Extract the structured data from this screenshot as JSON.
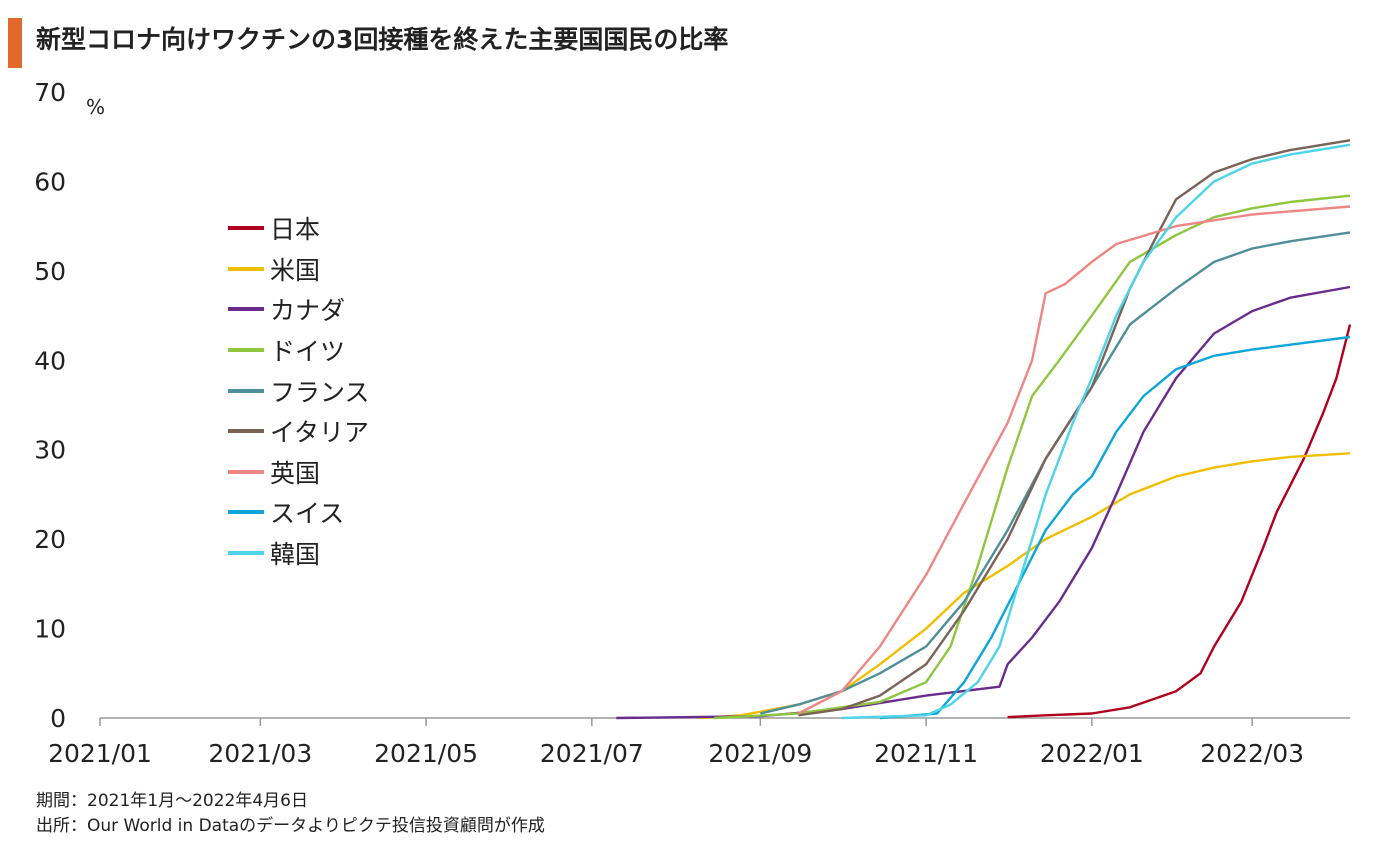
{
  "title": "新型コロナ向けワクチンの3回接種を終えた主要国国民の比率",
  "footnotes": {
    "period": "期間：2021年1月～2022年4月6日",
    "source": "出所：Our World in Dataのデータよりピクテ投信投資顧問が作成"
  },
  "chart_data": {
    "type": "line",
    "title": "新型コロナ向けワクチンの3回接種を終えた主要国国民の比率",
    "xlabel": "",
    "ylabel": "%",
    "unit_label": "%",
    "xlim": [
      "2021-01-01",
      "2022-04-06"
    ],
    "ylim": [
      0,
      70
    ],
    "yticks": [
      0,
      10,
      20,
      30,
      40,
      50,
      60,
      70
    ],
    "xticks": [
      {
        "date": "2021-01-01",
        "label": "2021/01"
      },
      {
        "date": "2021-03-01",
        "label": "2021/03"
      },
      {
        "date": "2021-05-01",
        "label": "2021/05"
      },
      {
        "date": "2021-07-01",
        "label": "2021/07"
      },
      {
        "date": "2021-09-01",
        "label": "2021/09"
      },
      {
        "date": "2021-11-01",
        "label": "2021/11"
      },
      {
        "date": "2022-01-01",
        "label": "2022/01"
      },
      {
        "date": "2022-03-01",
        "label": "2022/03"
      }
    ],
    "grid": false,
    "legend_position": "upper-left",
    "series": [
      {
        "name": "日本",
        "color": "#b0001e",
        "points": [
          [
            "2021-12-01",
            0.1
          ],
          [
            "2021-12-15",
            0.3
          ],
          [
            "2022-01-01",
            0.5
          ],
          [
            "2022-01-15",
            1.2
          ],
          [
            "2022-02-01",
            3
          ],
          [
            "2022-02-10",
            5
          ],
          [
            "2022-02-15",
            8
          ],
          [
            "2022-02-25",
            13
          ],
          [
            "2022-03-05",
            19
          ],
          [
            "2022-03-10",
            23
          ],
          [
            "2022-03-20",
            29
          ],
          [
            "2022-03-27",
            34
          ],
          [
            "2022-04-01",
            38
          ],
          [
            "2022-04-06",
            44
          ]
        ]
      },
      {
        "name": "米国",
        "color": "#f0be00",
        "points": [
          [
            "2021-08-10",
            0
          ],
          [
            "2021-08-25",
            0.3
          ],
          [
            "2021-09-15",
            1.5
          ],
          [
            "2021-10-01",
            3
          ],
          [
            "2021-10-15",
            6
          ],
          [
            "2021-11-01",
            10
          ],
          [
            "2021-11-15",
            14
          ],
          [
            "2021-12-01",
            17
          ],
          [
            "2021-12-15",
            20
          ],
          [
            "2022-01-01",
            22.5
          ],
          [
            "2022-01-15",
            25
          ],
          [
            "2022-02-01",
            27
          ],
          [
            "2022-02-15",
            28
          ],
          [
            "2022-03-01",
            28.7
          ],
          [
            "2022-03-15",
            29.2
          ],
          [
            "2022-04-06",
            29.6
          ]
        ]
      },
      {
        "name": "カナダ",
        "color": "#6a2c8c",
        "points": [
          [
            "2021-07-10",
            0
          ],
          [
            "2021-09-01",
            0.2
          ],
          [
            "2021-10-01",
            1
          ],
          [
            "2021-11-01",
            2.5
          ],
          [
            "2021-11-28",
            3.5
          ],
          [
            "2021-12-01",
            6
          ],
          [
            "2021-12-10",
            9
          ],
          [
            "2021-12-20",
            13
          ],
          [
            "2022-01-01",
            19
          ],
          [
            "2022-01-10",
            25
          ],
          [
            "2022-01-20",
            32
          ],
          [
            "2022-02-01",
            38
          ],
          [
            "2022-02-15",
            43
          ],
          [
            "2022-03-01",
            45.5
          ],
          [
            "2022-03-15",
            47
          ],
          [
            "2022-04-06",
            48.2
          ]
        ]
      },
      {
        "name": "ドイツ",
        "color": "#8ec63f",
        "points": [
          [
            "2021-08-15",
            0
          ],
          [
            "2021-09-15",
            0.5
          ],
          [
            "2021-10-15",
            1.8
          ],
          [
            "2021-11-01",
            4
          ],
          [
            "2021-11-10",
            8
          ],
          [
            "2021-11-20",
            17
          ],
          [
            "2021-12-01",
            28
          ],
          [
            "2021-12-10",
            36
          ],
          [
            "2021-12-20",
            40
          ],
          [
            "2022-01-01",
            45
          ],
          [
            "2022-01-15",
            51
          ],
          [
            "2022-02-01",
            54
          ],
          [
            "2022-02-15",
            56
          ],
          [
            "2022-03-01",
            57
          ],
          [
            "2022-03-15",
            57.7
          ],
          [
            "2022-04-06",
            58.4
          ]
        ]
      },
      {
        "name": "フランス",
        "color": "#4f8f9a",
        "points": [
          [
            "2021-09-01",
            0.5
          ],
          [
            "2021-09-15",
            1.5
          ],
          [
            "2021-10-01",
            3
          ],
          [
            "2021-10-15",
            5
          ],
          [
            "2021-11-01",
            8
          ],
          [
            "2021-11-15",
            13
          ],
          [
            "2021-12-01",
            21
          ],
          [
            "2021-12-15",
            29
          ],
          [
            "2022-01-01",
            37
          ],
          [
            "2022-01-15",
            44
          ],
          [
            "2022-02-01",
            48
          ],
          [
            "2022-02-15",
            51
          ],
          [
            "2022-03-01",
            52.5
          ],
          [
            "2022-03-15",
            53.3
          ],
          [
            "2022-04-06",
            54.3
          ]
        ]
      },
      {
        "name": "イタリア",
        "color": "#7a6257",
        "points": [
          [
            "2021-09-15",
            0.3
          ],
          [
            "2021-10-01",
            1
          ],
          [
            "2021-10-15",
            2.5
          ],
          [
            "2021-11-01",
            6
          ],
          [
            "2021-11-15",
            12
          ],
          [
            "2021-12-01",
            20
          ],
          [
            "2021-12-15",
            29
          ],
          [
            "2022-01-01",
            37
          ],
          [
            "2022-01-15",
            48
          ],
          [
            "2022-01-25",
            54
          ],
          [
            "2022-02-01",
            58
          ],
          [
            "2022-02-15",
            61
          ],
          [
            "2022-03-01",
            62.5
          ],
          [
            "2022-03-15",
            63.5
          ],
          [
            "2022-04-06",
            64.6
          ]
        ]
      },
      {
        "name": "英国",
        "color": "#ee8683",
        "points": [
          [
            "2021-09-15",
            0.5
          ],
          [
            "2021-10-01",
            3
          ],
          [
            "2021-10-15",
            8
          ],
          [
            "2021-11-01",
            16
          ],
          [
            "2021-11-15",
            24
          ],
          [
            "2021-12-01",
            33
          ],
          [
            "2021-12-10",
            40
          ],
          [
            "2021-12-15",
            47.5
          ],
          [
            "2021-12-22",
            48.5
          ],
          [
            "2022-01-01",
            51
          ],
          [
            "2022-01-10",
            53
          ],
          [
            "2022-02-01",
            55
          ],
          [
            "2022-03-01",
            56.3
          ],
          [
            "2022-04-06",
            57.2
          ]
        ]
      },
      {
        "name": "スイス",
        "color": "#0ea5d9",
        "points": [
          [
            "2021-10-15",
            0
          ],
          [
            "2021-11-05",
            0.5
          ],
          [
            "2021-11-15",
            4
          ],
          [
            "2021-11-25",
            9
          ],
          [
            "2021-12-05",
            15
          ],
          [
            "2021-12-15",
            21
          ],
          [
            "2021-12-25",
            25
          ],
          [
            "2022-01-01",
            27
          ],
          [
            "2022-01-10",
            32
          ],
          [
            "2022-01-20",
            36
          ],
          [
            "2022-02-01",
            39
          ],
          [
            "2022-02-15",
            40.5
          ],
          [
            "2022-03-01",
            41.2
          ],
          [
            "2022-04-06",
            42.6
          ]
        ]
      },
      {
        "name": "韓国",
        "color": "#4dd4e8",
        "points": [
          [
            "2021-10-01",
            0
          ],
          [
            "2021-11-01",
            0.3
          ],
          [
            "2021-11-10",
            1.5
          ],
          [
            "2021-11-20",
            4
          ],
          [
            "2021-11-28",
            8
          ],
          [
            "2021-12-05",
            15
          ],
          [
            "2021-12-15",
            25
          ],
          [
            "2021-12-25",
            33
          ],
          [
            "2022-01-01",
            38
          ],
          [
            "2022-01-10",
            45
          ],
          [
            "2022-01-20",
            51
          ],
          [
            "2022-02-01",
            56
          ],
          [
            "2022-02-15",
            60
          ],
          [
            "2022-03-01",
            62
          ],
          [
            "2022-03-15",
            63
          ],
          [
            "2022-04-06",
            64.1
          ]
        ]
      }
    ]
  }
}
